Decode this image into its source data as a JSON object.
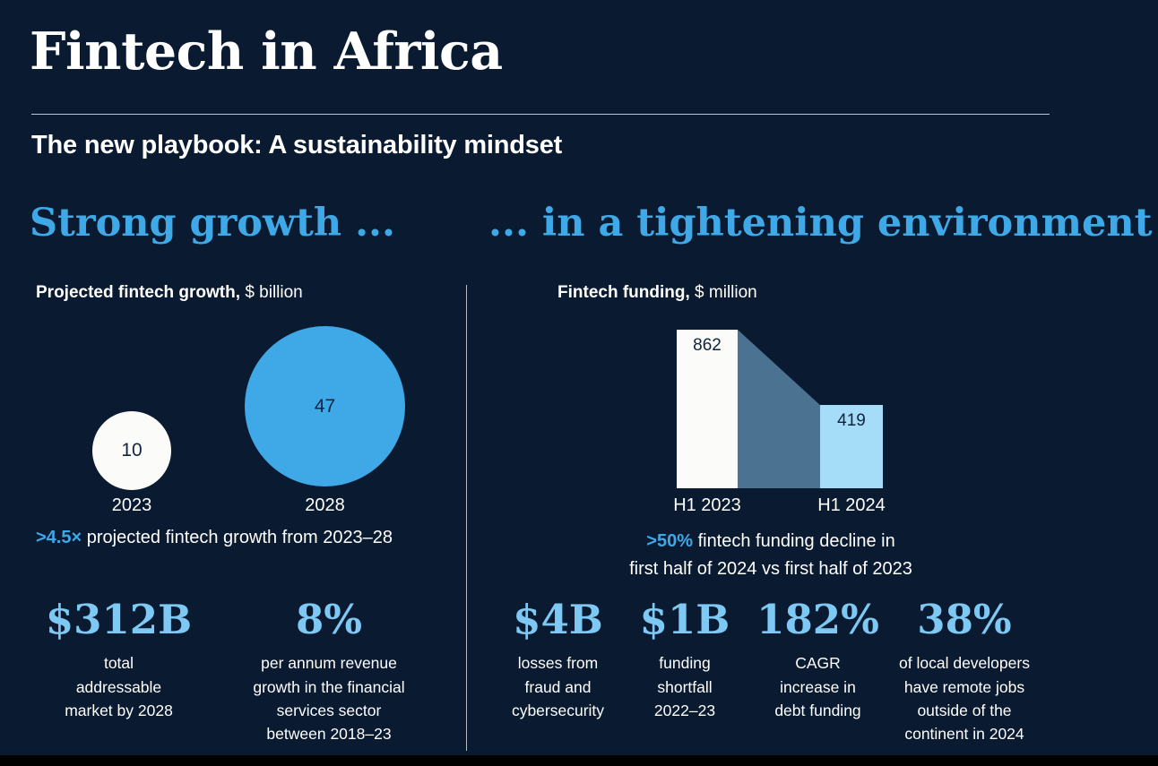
{
  "header": {
    "title": "Fintech in Africa",
    "subtitle": "The new playbook: A sustainability mindset",
    "heading_left": "Strong growth ...",
    "heading_right": "... in a tightening environment"
  },
  "colors": {
    "bg": "#0a1a31",
    "accent": "#3fa9e8",
    "stat_blue": "#7ec9f4",
    "bar_light": "#a5dcf8",
    "connector": "#4c7291",
    "dark_text": "#10233f"
  },
  "left_panel": {
    "chart_label": "Projected fintech growth,",
    "chart_unit": "$ billion",
    "bubbles": [
      {
        "value": "10",
        "year": "2023"
      },
      {
        "value": "47",
        "year": "2028"
      }
    ],
    "caption_highlight": ">4.5×",
    "caption_text": "projected fintech growth from 2023–28",
    "stats": [
      {
        "value": "$312B",
        "label": "total\naddressable\nmarket by 2028"
      },
      {
        "value": "8%",
        "label": "per annum revenue\ngrowth in the financial\nservices sector\nbetween 2018–23"
      }
    ]
  },
  "right_panel": {
    "chart_label": "Fintech funding,",
    "chart_unit": "$ million",
    "bars": [
      {
        "value": "862",
        "label": "H1 2023"
      },
      {
        "value": "419",
        "label": "H1 2024"
      }
    ],
    "caption_highlight": ">50%",
    "caption_line1": "fintech funding decline in",
    "caption_line2": "first half of 2024 vs first half of 2023",
    "stats": [
      {
        "value": "$4B",
        "label": "losses from\nfraud and\ncybersecurity"
      },
      {
        "value": "$1B",
        "label": "funding\nshortfall\n2022–23"
      },
      {
        "value": "182%",
        "label": "CAGR\nincrease in\ndebt funding"
      },
      {
        "value": "38%",
        "label": "of local developers\nhave remote jobs\noutside of the\ncontinent in 2024"
      }
    ]
  },
  "chart_data": [
    {
      "type": "bubble",
      "title": "Projected fintech growth, $ billion",
      "categories": [
        "2023",
        "2028"
      ],
      "values": [
        10,
        47
      ],
      "annotation": ">4.5× projected fintech growth from 2023–28",
      "colors": [
        "#fbfbf9",
        "#3fa9e8"
      ]
    },
    {
      "type": "bar",
      "title": "Fintech funding, $ million",
      "categories": [
        "H1 2023",
        "H1 2024"
      ],
      "values": [
        862,
        419
      ],
      "annotation": ">50% fintech funding decline in first half of 2024 vs first half of 2023",
      "colors": [
        "#fbfbf9",
        "#a5dcf8"
      ]
    }
  ]
}
